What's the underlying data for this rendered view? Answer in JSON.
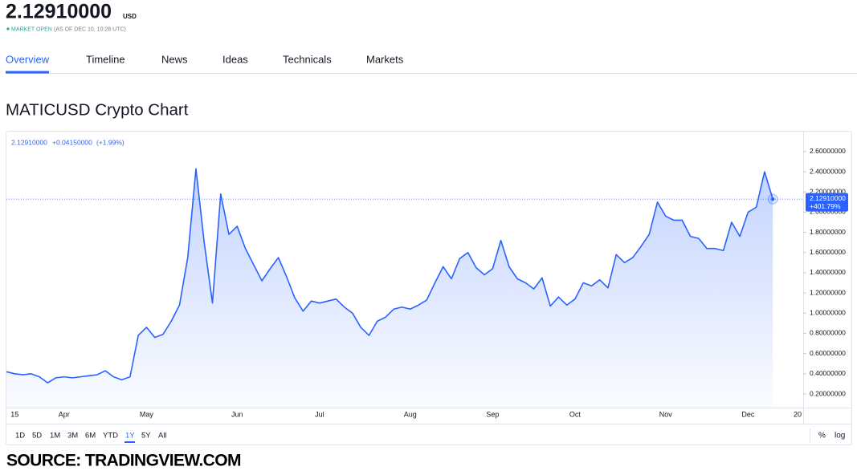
{
  "header": {
    "price": "2.12910000",
    "currency": "USD",
    "status": "MARKET OPEN",
    "as_of": "(AS OF DEC 10, 10:28 UTC)"
  },
  "tabs": [
    "Overview",
    "Timeline",
    "News",
    "Ideas",
    "Technicals",
    "Markets"
  ],
  "section_title": "MATICUSD Crypto Chart",
  "chart_data": {
    "type": "line",
    "color": "#2962ff",
    "legend": {
      "price": "2.12910000",
      "change": "+0.04150000",
      "change_pct": "(+1.99%)"
    },
    "last_price_label": "2.12910000",
    "last_change_label": "+401.79%",
    "categories": [
      null,
      "15",
      null,
      null,
      null,
      null,
      null,
      "Apr",
      null,
      null,
      null,
      null,
      null,
      null,
      null,
      null,
      null,
      "May",
      null,
      null,
      null,
      null,
      null,
      null,
      null,
      null,
      null,
      null,
      "Jun",
      null,
      null,
      null,
      null,
      null,
      null,
      null,
      null,
      null,
      "Jul",
      null,
      null,
      null,
      null,
      null,
      null,
      null,
      null,
      null,
      null,
      "Aug",
      null,
      null,
      null,
      null,
      null,
      null,
      null,
      null,
      null,
      "Sep",
      null,
      null,
      null,
      null,
      null,
      null,
      null,
      null,
      null,
      "Oct",
      null,
      null,
      null,
      null,
      null,
      null,
      null,
      null,
      null,
      null,
      "Nov",
      null,
      null,
      null,
      null,
      null,
      null,
      null,
      null,
      null,
      "Dec",
      null,
      null,
      null,
      null,
      null,
      "20"
    ],
    "values": [
      0.42,
      0.4,
      0.39,
      0.4,
      0.37,
      0.31,
      0.36,
      0.37,
      0.36,
      0.37,
      0.38,
      0.39,
      0.43,
      0.37,
      0.34,
      0.37,
      0.78,
      0.86,
      0.76,
      0.79,
      0.92,
      1.08,
      1.55,
      2.43,
      1.7,
      1.1,
      2.18,
      1.78,
      1.86,
      1.64,
      1.48,
      1.32,
      1.44,
      1.55,
      1.36,
      1.15,
      1.02,
      1.12,
      1.1,
      1.12,
      1.14,
      1.06,
      1.0,
      0.86,
      0.78,
      0.92,
      0.96,
      1.04,
      1.06,
      1.04,
      1.08,
      1.13,
      1.3,
      1.46,
      1.34,
      1.54,
      1.6,
      1.45,
      1.38,
      1.44,
      1.72,
      1.46,
      1.34,
      1.3,
      1.24,
      1.35,
      1.07,
      1.16,
      1.08,
      1.14,
      1.3,
      1.27,
      1.33,
      1.25,
      1.58,
      1.5,
      1.55,
      1.66,
      1.78,
      2.1,
      1.96,
      1.92,
      1.92,
      1.76,
      1.74,
      1.64,
      1.64,
      1.62,
      1.9,
      1.76,
      2.0,
      2.05,
      2.4,
      2.1291,
      null,
      null,
      null
    ],
    "ylim": [
      0.065,
      2.75
    ],
    "yticks": [
      {
        "value": 0.2,
        "label": "0.20000000"
      },
      {
        "value": 0.4,
        "label": "0.40000000"
      },
      {
        "value": 0.6,
        "label": "0.60000000"
      },
      {
        "value": 0.8,
        "label": "0.80000000"
      },
      {
        "value": 1.0,
        "label": "1.00000000"
      },
      {
        "value": 1.2,
        "label": "1.20000000"
      },
      {
        "value": 1.4,
        "label": "1.40000000"
      },
      {
        "value": 1.6,
        "label": "1.60000000"
      },
      {
        "value": 1.8,
        "label": "1.80000000"
      },
      {
        "value": 2.0,
        "label": "2.00000000"
      },
      {
        "value": 2.2,
        "label": "2.20000000"
      },
      {
        "value": 2.4,
        "label": "2.40000000"
      },
      {
        "value": 2.6,
        "label": "2.60000000"
      }
    ]
  },
  "ranges": [
    "1D",
    "5D",
    "1M",
    "3M",
    "6M",
    "YTD",
    "1Y",
    "5Y",
    "All"
  ],
  "scale_buttons": [
    "%",
    "log"
  ],
  "source": "SOURCE: TRADINGVIEW.COM"
}
